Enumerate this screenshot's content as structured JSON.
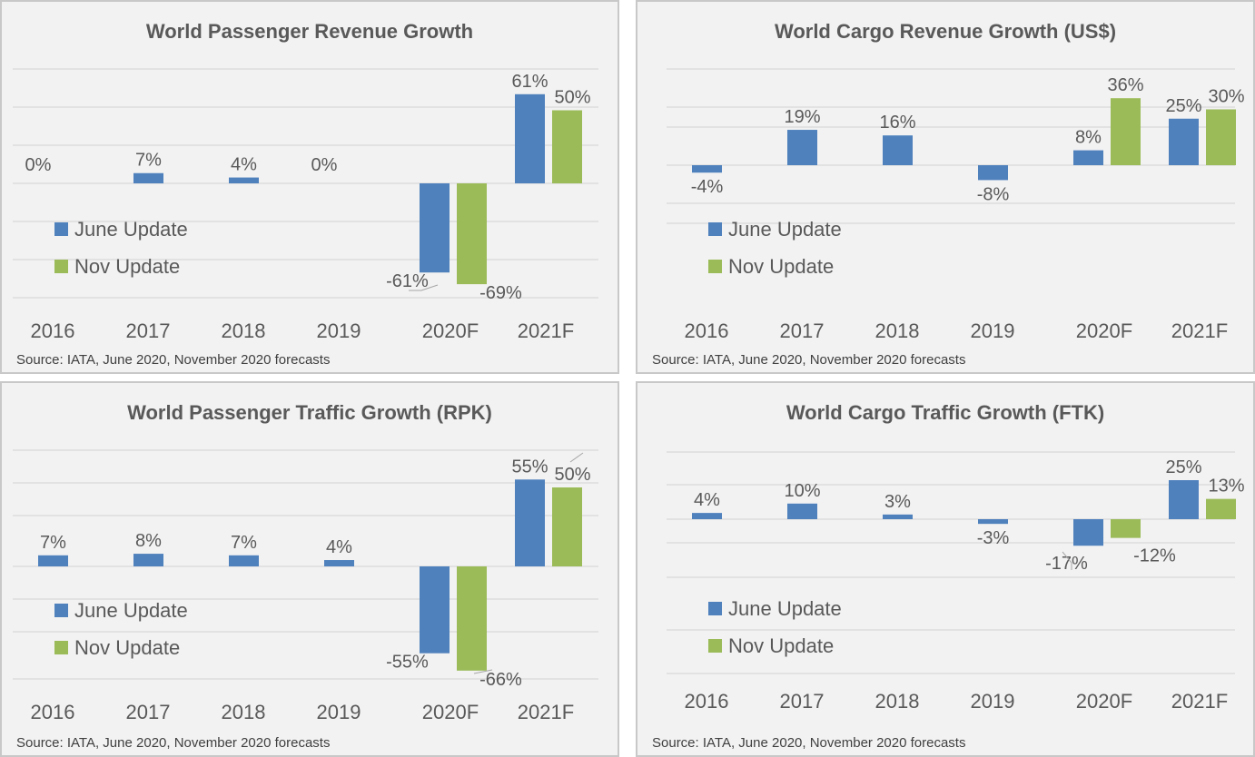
{
  "colors": {
    "june": "#4f81bd",
    "nov": "#9bbb59",
    "grid": "#d9d9d9",
    "text": "#595959",
    "panel_bg": "#f2f2f2"
  },
  "panels": [
    {
      "title": "World Passenger Revenue Growth",
      "source": "Source: IATA, June 2020, November 2020 forecasts"
    },
    {
      "title": "World Cargo Revenue Growth (US$)",
      "source": "Source: IATA, June 2020, November 2020 forecasts"
    },
    {
      "title": "World Passenger Traffic Growth (RPK)",
      "source": "Source: IATA, June 2020, November 2020 forecasts"
    },
    {
      "title": "World Cargo Traffic Growth (FTK)",
      "source": "Source: IATA, June 2020, November 2020 forecasts"
    }
  ],
  "chart_data": [
    {
      "type": "bar",
      "title": "World Passenger Revenue Growth",
      "categories": [
        "2016",
        "2017",
        "2018",
        "2019",
        "2020F",
        "2021F"
      ],
      "legend": "left",
      "grid": true,
      "ylim": [
        -100,
        100
      ],
      "series": [
        {
          "name": "June Update",
          "values": [
            0,
            7,
            4,
            0,
            -61,
            61
          ],
          "labels": [
            "0%",
            "7%",
            "4%",
            "0%",
            "-61%",
            "61%"
          ]
        },
        {
          "name": "Nov Update",
          "values": [
            null,
            null,
            null,
            null,
            -69,
            50
          ],
          "labels": [
            "",
            "",
            "",
            "",
            "-69%",
            "50%"
          ]
        }
      ]
    },
    {
      "type": "bar",
      "title": "World Cargo Revenue Growth (US$)",
      "categories": [
        "2016",
        "2017",
        "2018",
        "2019",
        "2020F",
        "2021F"
      ],
      "legend": "left",
      "grid": true,
      "ylim": [
        -40,
        50
      ],
      "series": [
        {
          "name": "June Update",
          "values": [
            -4,
            19,
            16,
            -8,
            8,
            25
          ],
          "labels": [
            "-4%",
            "19%",
            "16%",
            "-8%",
            "8%",
            "25%"
          ]
        },
        {
          "name": "Nov Update",
          "values": [
            null,
            null,
            null,
            null,
            36,
            30
          ],
          "labels": [
            "",
            "",
            "",
            "",
            "36%",
            "30%"
          ]
        }
      ]
    },
    {
      "type": "bar",
      "title": "World Passenger Traffic Growth (RPK)",
      "categories": [
        "2016",
        "2017",
        "2018",
        "2019",
        "2020F",
        "2021F"
      ],
      "legend": "left",
      "grid": true,
      "ylim": [
        -80,
        80
      ],
      "series": [
        {
          "name": "June Update",
          "values": [
            7,
            8,
            7,
            4,
            -55,
            55
          ],
          "labels": [
            "7%",
            "8%",
            "7%",
            "4%",
            "-55%",
            "55%"
          ]
        },
        {
          "name": "Nov Update",
          "values": [
            null,
            null,
            null,
            null,
            -66,
            50
          ],
          "labels": [
            "",
            "",
            "",
            "",
            "-66%",
            "50%"
          ]
        }
      ]
    },
    {
      "type": "bar",
      "title": "World Cargo Traffic Growth (FTK)",
      "categories": [
        "2016",
        "2017",
        "2018",
        "2019",
        "2020F",
        "2021F"
      ],
      "legend": "left",
      "grid": true,
      "ylim": [
        -40,
        30
      ],
      "series": [
        {
          "name": "June Update",
          "values": [
            4,
            10,
            3,
            -3,
            -17,
            25
          ],
          "labels": [
            "4%",
            "10%",
            "3%",
            "-3%",
            "-17%",
            "25%"
          ]
        },
        {
          "name": "Nov Update",
          "values": [
            null,
            null,
            null,
            null,
            -12,
            13
          ],
          "labels": [
            "",
            "",
            "",
            "",
            "-12%",
            "13%"
          ]
        }
      ]
    }
  ]
}
